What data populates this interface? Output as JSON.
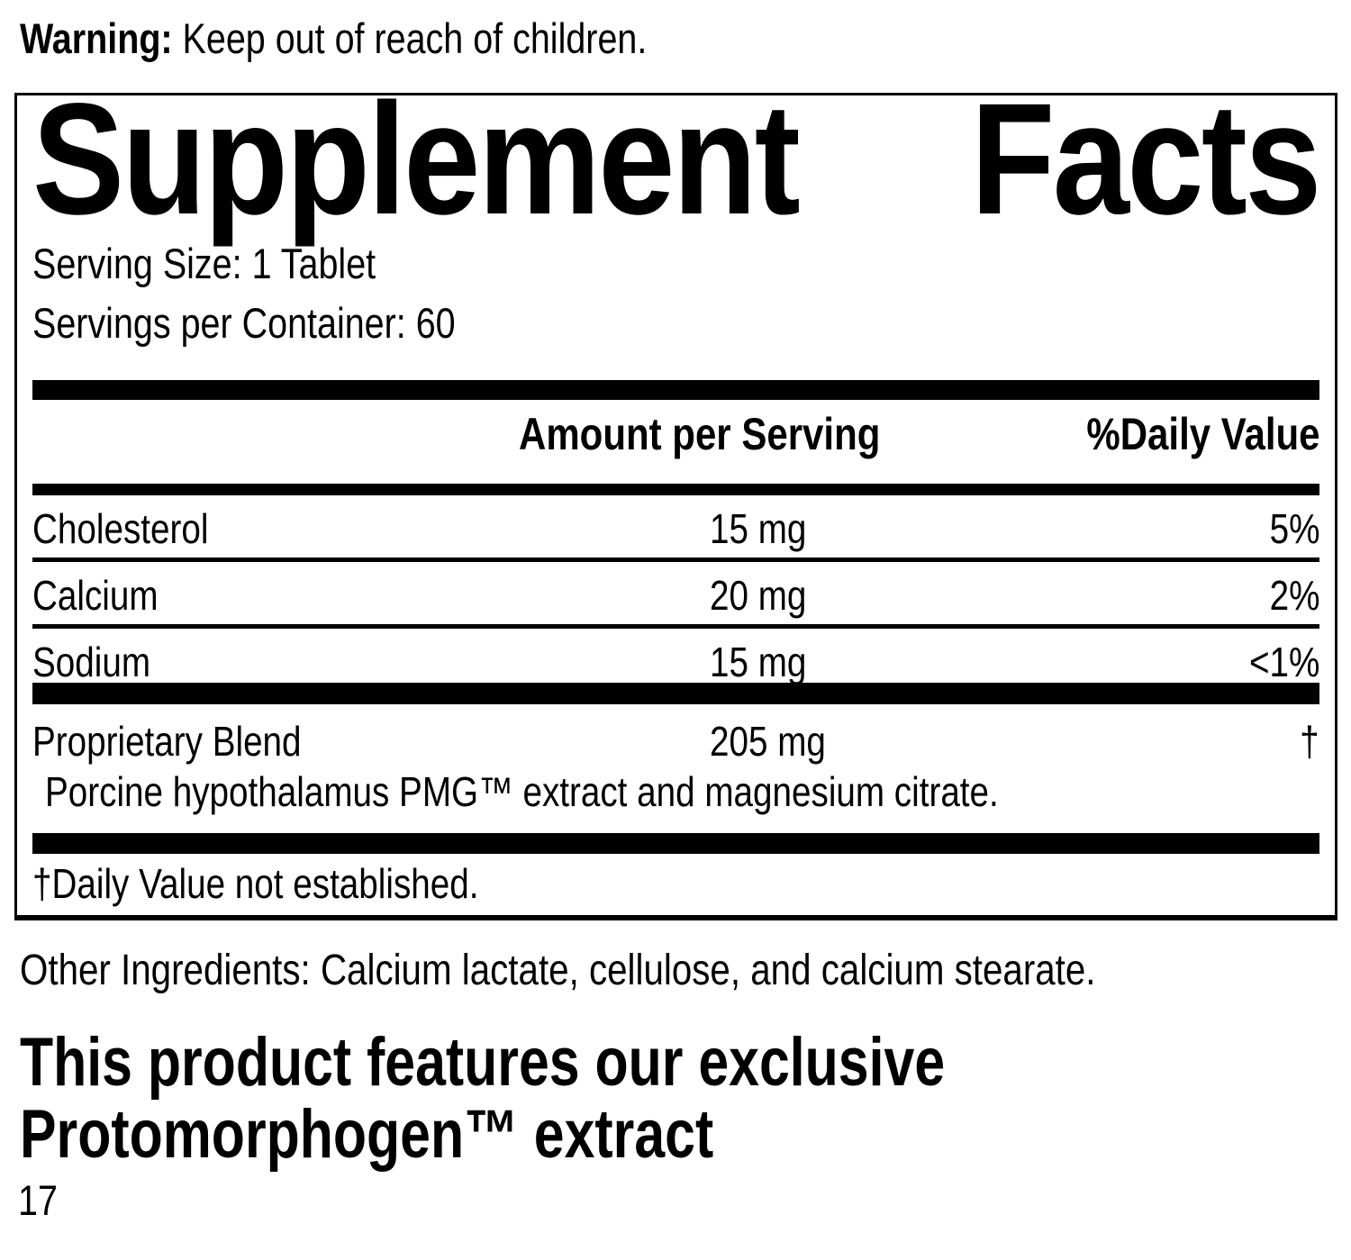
{
  "warning": {
    "label": "Warning:",
    "text": " Keep out of reach of children."
  },
  "panel": {
    "title": {
      "left": "Supplement",
      "right": "Facts"
    },
    "serving_size": "Serving Size: 1 Tablet",
    "servings_per_container": "Servings per Container: 60",
    "columns": {
      "amount": "Amount per Serving",
      "daily_value": "%Daily Value"
    },
    "nutrients": [
      {
        "name": "Cholesterol",
        "amount": "15 mg",
        "dv": "5%"
      },
      {
        "name": "Calcium",
        "amount": "20 mg",
        "dv": "2%"
      },
      {
        "name": "Sodium",
        "amount": "15 mg",
        "dv": "<1%"
      }
    ],
    "blend": {
      "name": "Proprietary Blend",
      "amount": "205 mg",
      "dv": "†",
      "description": "Porcine hypothalamus PMG™ extract and magnesium citrate."
    },
    "footnote": "†Daily Value not established."
  },
  "other_ingredients": "Other Ingredients: Calcium lactate, cellulose, and calcium stearate.",
  "feature_statement": {
    "line1": "This product features our exclusive",
    "line2": "Protomorphogen™ extract"
  },
  "page_number": "17"
}
